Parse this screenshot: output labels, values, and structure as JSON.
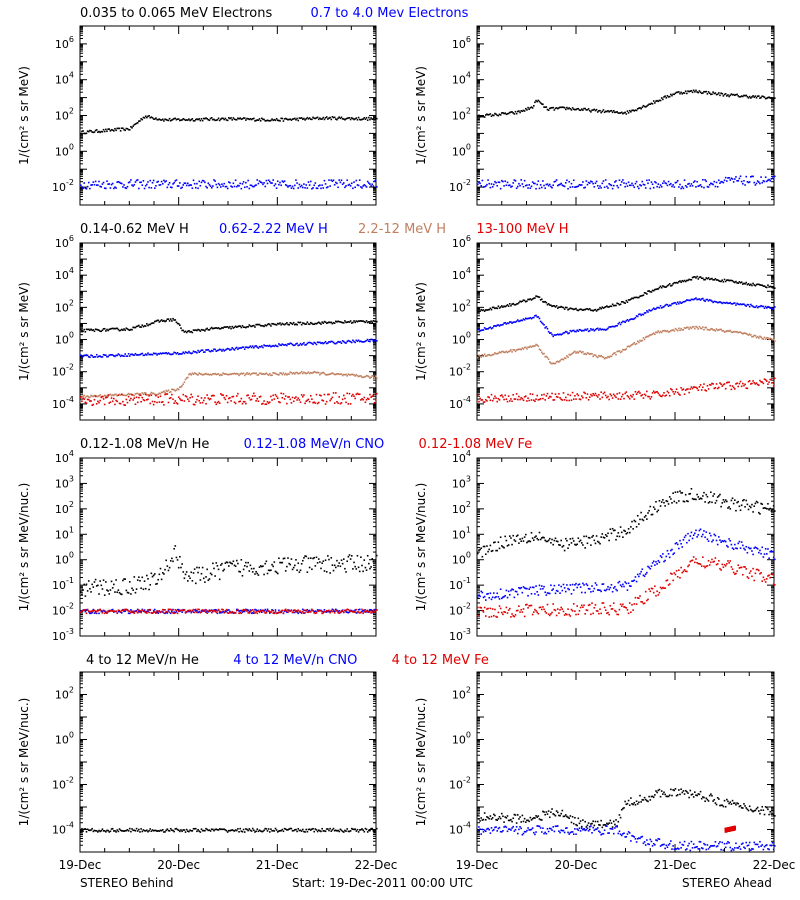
{
  "headers": [
    [
      {
        "text": "0.035 to 0.065 MeV Electrons",
        "color": "#000000"
      },
      {
        "text": "0.7 to 4.0 Mev Electrons",
        "color": "#0000ff"
      }
    ],
    [
      {
        "text": "0.14-0.62 MeV H",
        "color": "#000000"
      },
      {
        "text": "0.62-2.22 MeV H",
        "color": "#0000ff"
      },
      {
        "text": "2.2-12 MeV H",
        "color": "#c08060"
      },
      {
        "text": "13-100 MeV H",
        "color": "#e00000"
      }
    ],
    [
      {
        "text": "0.12-1.08 MeV/n He",
        "color": "#000000"
      },
      {
        "text": "0.12-1.08 MeV/n CNO",
        "color": "#0000ff"
      },
      {
        "text": "0.12-1.08 MeV Fe",
        "color": "#e00000"
      }
    ],
    [
      {
        "text": "4 to 12 MeV/n He",
        "color": "#000000"
      },
      {
        "text": "4 to 12 MeV/n CNO",
        "color": "#0000ff"
      },
      {
        "text": "4 to 12 MeV Fe",
        "color": "#e00000"
      }
    ]
  ],
  "footer": {
    "left": "STEREO Behind",
    "center": "Start: 19-Dec-2011 00:00 UTC",
    "right": "STEREO Ahead"
  },
  "chart_data": [
    {
      "type": "scatter",
      "panel": "Behind electrons",
      "ylabel": "1/(cm² s sr MeV)",
      "ylog": true,
      "ylim": [
        -3,
        7
      ],
      "yticks": [
        -2,
        0,
        2,
        4,
        6
      ],
      "x_ticks": [
        "19-Dec",
        "20-Dec",
        "21-Dec",
        "22-Dec"
      ],
      "xlim_days": [
        0,
        3
      ],
      "series": [
        {
          "color": "#000000",
          "points": [
            [
              0,
              1.1
            ],
            [
              0.5,
              1.3
            ],
            [
              0.65,
              2.0
            ],
            [
              0.75,
              1.9
            ],
            [
              0.85,
              1.8
            ],
            [
              1.5,
              1.85
            ],
            [
              2.0,
              1.8
            ],
            [
              2.5,
              1.9
            ],
            [
              3,
              1.85
            ]
          ]
        },
        {
          "color": "#0000ff",
          "points": [
            [
              0,
              -1.8
            ],
            [
              3,
              -1.8
            ]
          ],
          "noise": 0.25
        }
      ]
    },
    {
      "type": "scatter",
      "panel": "Ahead electrons",
      "ylabel": "1/(cm² s sr MeV)",
      "ylog": true,
      "ylim": [
        -3,
        7
      ],
      "yticks": [
        -2,
        0,
        2,
        4,
        6
      ],
      "x_ticks": [
        "19-Dec",
        "20-Dec",
        "21-Dec",
        "22-Dec"
      ],
      "xlim_days": [
        0,
        3
      ],
      "series": [
        {
          "color": "#000000",
          "points": [
            [
              0,
              2.0
            ],
            [
              0.4,
              2.2
            ],
            [
              0.55,
              2.5
            ],
            [
              0.6,
              2.9
            ],
            [
              0.7,
              2.4
            ],
            [
              0.9,
              2.45
            ],
            [
              1.2,
              2.3
            ],
            [
              1.5,
              2.2
            ],
            [
              1.7,
              2.6
            ],
            [
              2.0,
              3.3
            ],
            [
              2.2,
              3.4
            ],
            [
              2.5,
              3.2
            ],
            [
              3,
              3.0
            ]
          ]
        },
        {
          "color": "#0000ff",
          "points": [
            [
              0,
              -1.8
            ],
            [
              2.2,
              -1.8
            ],
            [
              2.6,
              -1.6
            ],
            [
              3,
              -1.6
            ]
          ],
          "noise": 0.25
        }
      ]
    },
    {
      "type": "scatter",
      "panel": "Behind protons",
      "ylabel": "1/(cm² s sr MeV)",
      "ylog": true,
      "ylim": [
        -5,
        6
      ],
      "yticks": [
        -4,
        -2,
        0,
        2,
        4,
        6
      ],
      "x_ticks": [
        "19-Dec",
        "20-Dec",
        "21-Dec",
        "22-Dec"
      ],
      "xlim_days": [
        0,
        3
      ],
      "series": [
        {
          "color": "#000000",
          "points": [
            [
              0,
              0.6
            ],
            [
              0.5,
              0.7
            ],
            [
              0.8,
              1.2
            ],
            [
              0.95,
              1.3
            ],
            [
              1.05,
              0.5
            ],
            [
              1.3,
              0.7
            ],
            [
              2,
              1.0
            ],
            [
              3,
              1.2
            ]
          ]
        },
        {
          "color": "#0000ff",
          "points": [
            [
              0,
              -1.0
            ],
            [
              1,
              -0.8
            ],
            [
              2,
              -0.3
            ],
            [
              3,
              0
            ]
          ]
        },
        {
          "color": "#c08060",
          "points": [
            [
              0,
              -3.5
            ],
            [
              0.8,
              -3.3
            ],
            [
              1.0,
              -3.0
            ],
            [
              1.1,
              -2.1
            ],
            [
              2,
              -2.1
            ],
            [
              2.3,
              -2.0
            ],
            [
              3,
              -2.3
            ]
          ]
        },
        {
          "color": "#e00000",
          "points": [
            [
              0,
              -3.7
            ],
            [
              3,
              -3.6
            ]
          ],
          "noise": 0.35
        }
      ]
    },
    {
      "type": "scatter",
      "panel": "Ahead protons",
      "ylabel": "1/(cm² s sr MeV)",
      "ylog": true,
      "ylim": [
        -5,
        6
      ],
      "yticks": [
        -4,
        -2,
        0,
        2,
        4,
        6
      ],
      "x_ticks": [
        "19-Dec",
        "20-Dec",
        "21-Dec",
        "22-Dec"
      ],
      "xlim_days": [
        0,
        3
      ],
      "series": [
        {
          "color": "#000000",
          "points": [
            [
              0,
              1.8
            ],
            [
              0.4,
              2.3
            ],
            [
              0.6,
              2.7
            ],
            [
              0.75,
              2.1
            ],
            [
              1,
              1.9
            ],
            [
              1.2,
              1.9
            ],
            [
              1.5,
              2.4
            ],
            [
              1.8,
              3.2
            ],
            [
              2.2,
              3.9
            ],
            [
              2.5,
              3.7
            ],
            [
              3,
              3.3
            ]
          ]
        },
        {
          "color": "#0000ff",
          "points": [
            [
              0,
              0.6
            ],
            [
              0.4,
              1.2
            ],
            [
              0.6,
              1.5
            ],
            [
              0.75,
              0.3
            ],
            [
              1,
              0.6
            ],
            [
              1.3,
              0.7
            ],
            [
              1.5,
              1.2
            ],
            [
              1.8,
              2.0
            ],
            [
              2.2,
              2.6
            ],
            [
              2.5,
              2.3
            ],
            [
              3,
              2.0
            ]
          ]
        },
        {
          "color": "#c08060",
          "points": [
            [
              0,
              -1.0
            ],
            [
              0.4,
              -0.6
            ],
            [
              0.6,
              -0.3
            ],
            [
              0.75,
              -1.5
            ],
            [
              1.0,
              -0.7
            ],
            [
              1.3,
              -1.1
            ],
            [
              1.5,
              -0.5
            ],
            [
              1.8,
              0.5
            ],
            [
              2.2,
              0.8
            ],
            [
              2.6,
              0.5
            ],
            [
              3,
              0
            ]
          ]
        },
        {
          "color": "#e00000",
          "points": [
            [
              0,
              -3.6
            ],
            [
              1.8,
              -3.4
            ],
            [
              2.2,
              -3.0
            ],
            [
              3,
              -2.6
            ]
          ],
          "noise": 0.25
        }
      ]
    },
    {
      "type": "scatter",
      "panel": "Behind low-energy heavy ions",
      "ylabel": "1/(cm² s sr MeV/nuc.)",
      "ylog": true,
      "ylim": [
        -3,
        4
      ],
      "yticks": [
        -3,
        -2,
        -1,
        0,
        1,
        2,
        3,
        4
      ],
      "x_ticks": [
        "19-Dec",
        "20-Dec",
        "21-Dec",
        "22-Dec"
      ],
      "xlim_days": [
        0,
        3
      ],
      "series": [
        {
          "color": "#000000",
          "points": [
            [
              0,
              -1.1
            ],
            [
              0.5,
              -1.0
            ],
            [
              0.8,
              -0.7
            ],
            [
              0.95,
              0.3
            ],
            [
              1.1,
              -0.7
            ],
            [
              1.5,
              -0.3
            ],
            [
              2,
              -0.2
            ],
            [
              3,
              -0.1
            ]
          ],
          "noise": 0.35
        },
        {
          "color": "#0000ff",
          "points": [
            [
              0,
              -2.0
            ],
            [
              3,
              -2.0
            ]
          ]
        },
        {
          "color": "#e00000",
          "points": [
            [
              0,
              -2.0
            ],
            [
              3,
              -2.0
            ]
          ]
        }
      ]
    },
    {
      "type": "scatter",
      "panel": "Ahead low-energy heavy ions",
      "ylabel": "1/(cm² s sr MeV/nuc.)",
      "ylog": true,
      "ylim": [
        -3,
        4
      ],
      "yticks": [
        -3,
        -2,
        -1,
        0,
        1,
        2,
        3,
        4
      ],
      "x_ticks": [
        "19-Dec",
        "20-Dec",
        "21-Dec",
        "22-Dec"
      ],
      "xlim_days": [
        0,
        3
      ],
      "series": [
        {
          "color": "#000000",
          "points": [
            [
              0,
              0.3
            ],
            [
              0.3,
              0.8
            ],
            [
              0.6,
              1.0
            ],
            [
              0.8,
              0.6
            ],
            [
              1.2,
              0.8
            ],
            [
              1.5,
              1.2
            ],
            [
              1.9,
              2.4
            ],
            [
              2.2,
              2.6
            ],
            [
              2.6,
              2.2
            ],
            [
              3,
              2.0
            ]
          ],
          "noise": 0.25
        },
        {
          "color": "#0000ff",
          "points": [
            [
              0,
              -1.4
            ],
            [
              0.5,
              -1.2
            ],
            [
              1.0,
              -1.1
            ],
            [
              1.5,
              -1.0
            ],
            [
              1.8,
              -0.1
            ],
            [
              2.2,
              1.1
            ],
            [
              2.6,
              0.6
            ],
            [
              3,
              0.2
            ]
          ],
          "noise": 0.2
        },
        {
          "color": "#e00000",
          "points": [
            [
              0,
              -2.0
            ],
            [
              1.5,
              -1.9
            ],
            [
              1.8,
              -1.2
            ],
            [
              2.2,
              0.0
            ],
            [
              2.6,
              -0.3
            ],
            [
              3,
              -0.8
            ]
          ],
          "noise": 0.25
        }
      ]
    },
    {
      "type": "scatter",
      "panel": "Behind high-energy heavy ions",
      "ylabel": "1/(cm² s sr MeV/nuc.)",
      "ylog": true,
      "ylim": [
        -5,
        3
      ],
      "yticks": [
        -4,
        -2,
        0,
        2
      ],
      "x_ticks": [
        "19-Dec",
        "20-Dec",
        "21-Dec",
        "22-Dec"
      ],
      "xlim_days": [
        0,
        3
      ],
      "series": [
        {
          "color": "#000000",
          "points": [
            [
              0,
              -4.0
            ],
            [
              3,
              -4.0
            ]
          ]
        }
      ]
    },
    {
      "type": "scatter",
      "panel": "Ahead high-energy heavy ions",
      "ylabel": "1/(cm² s sr MeV/nuc.)",
      "ylog": true,
      "ylim": [
        -5,
        3
      ],
      "yticks": [
        -4,
        -2,
        0,
        2
      ],
      "x_ticks": [
        "19-Dec",
        "20-Dec",
        "21-Dec",
        "22-Dec"
      ],
      "xlim_days": [
        0,
        3
      ],
      "series": [
        {
          "color": "#000000",
          "points": [
            [
              0,
              -3.4
            ],
            [
              0.5,
              -3.5
            ],
            [
              0.8,
              -3.2
            ],
            [
              1.1,
              -3.8
            ],
            [
              1.4,
              -3.7
            ],
            [
              1.5,
              -2.8
            ],
            [
              1.9,
              -2.3
            ],
            [
              2.2,
              -2.4
            ],
            [
              2.6,
              -2.9
            ],
            [
              3,
              -3.2
            ]
          ],
          "noise": 0.2
        },
        {
          "color": "#0000ff",
          "points": [
            [
              0,
              -4.0
            ],
            [
              1.4,
              -4.0
            ],
            [
              1.6,
              -4.4
            ],
            [
              2.0,
              -4.7
            ],
            [
              3,
              -4.7
            ]
          ],
          "noise": 0.2
        },
        {
          "color": "#e00000",
          "points": [
            [
              2.5,
              -4.0
            ],
            [
              2.6,
              -3.9
            ]
          ]
        }
      ]
    }
  ]
}
